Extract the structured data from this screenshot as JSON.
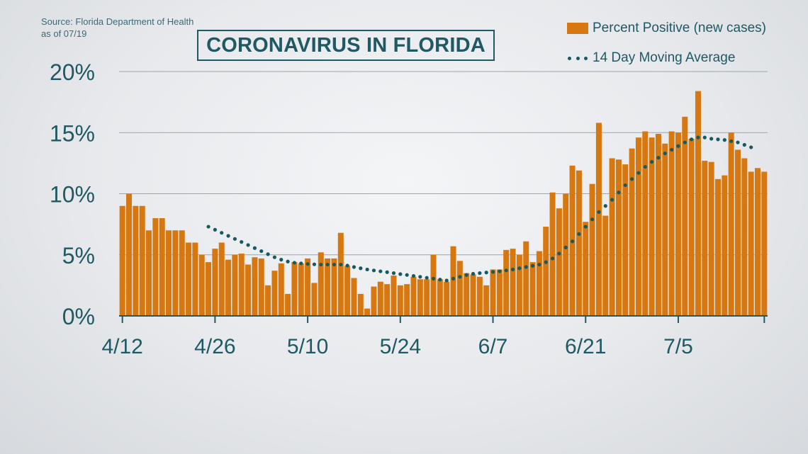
{
  "source": {
    "line1": "Source: Florida Department of Health",
    "line2": "as of 07/19"
  },
  "title": "CORONAVIRUS IN FLORIDA",
  "colors": {
    "bar": "#d6780f",
    "average_dots": "#155a5e",
    "text": "#1f5963",
    "axis": "#1f5963",
    "grid": "#9aa7ad"
  },
  "chart_data": {
    "type": "bar",
    "y_ticks": [
      "0%",
      "5%",
      "10%",
      "15%",
      "20%"
    ],
    "x_ticks": [
      "4/12",
      "4/26",
      "5/10",
      "5/24",
      "6/7",
      "6/21",
      "7/5"
    ],
    "ylim": [
      0,
      20
    ],
    "grid": true,
    "legend_position": "top-right",
    "series": [
      {
        "name": "Percent Positive (new cases)",
        "kind": "bar",
        "values": [
          9.0,
          10.0,
          9.0,
          9.0,
          7.0,
          8.0,
          8.0,
          7.0,
          7.0,
          7.0,
          6.0,
          6.0,
          5.0,
          4.4,
          5.5,
          6.0,
          4.6,
          5.0,
          5.1,
          4.2,
          4.8,
          4.7,
          2.5,
          3.7,
          4.3,
          1.8,
          4.4,
          4.3,
          4.7,
          2.7,
          5.2,
          4.7,
          4.7,
          6.8,
          4.1,
          3.1,
          1.8,
          0.6,
          2.4,
          2.8,
          2.6,
          3.3,
          2.5,
          2.6,
          3.2,
          3.0,
          3.0,
          5.0,
          3.0,
          2.8,
          5.7,
          4.5,
          3.5,
          3.4,
          3.2,
          2.5,
          3.8,
          3.8,
          5.4,
          5.5,
          5.0,
          6.1,
          4.4,
          5.3,
          7.3,
          10.1,
          8.8,
          10.0,
          12.3,
          11.9,
          7.7,
          10.8,
          15.8,
          8.2,
          12.9,
          12.8,
          12.4,
          13.7,
          14.6,
          15.1,
          14.6,
          14.9,
          14.1,
          15.1,
          15.0,
          16.3,
          14.5,
          18.4,
          12.7,
          12.6,
          11.2,
          11.5,
          15.0,
          13.6,
          12.9,
          11.8,
          12.1,
          11.8
        ]
      },
      {
        "name": "14 Day Moving Average",
        "kind": "dotted-line",
        "values": [
          null,
          null,
          null,
          null,
          null,
          null,
          null,
          null,
          null,
          null,
          null,
          null,
          null,
          7.3,
          7.05,
          6.8,
          6.55,
          6.3,
          6.05,
          5.8,
          5.55,
          5.3,
          5.05,
          4.8,
          4.6,
          4.45,
          4.35,
          4.3,
          4.25,
          4.22,
          4.2,
          4.2,
          4.2,
          4.2,
          4.12,
          4.0,
          3.9,
          3.8,
          3.72,
          3.65,
          3.58,
          3.5,
          3.42,
          3.35,
          3.27,
          3.2,
          3.12,
          3.05,
          2.97,
          2.9,
          3.05,
          3.2,
          3.35,
          3.45,
          3.5,
          3.55,
          3.6,
          3.65,
          3.72,
          3.8,
          3.9,
          4.0,
          4.1,
          4.2,
          4.4,
          4.7,
          5.1,
          5.6,
          6.1,
          6.7,
          7.3,
          7.9,
          8.5,
          9.0,
          9.5,
          10.1,
          10.7,
          11.2,
          11.7,
          12.2,
          12.6,
          12.95,
          13.3,
          13.6,
          13.9,
          14.2,
          14.45,
          14.6,
          14.6,
          14.5,
          14.45,
          14.4,
          14.3,
          14.2,
          14.0,
          13.8,
          null,
          null
        ]
      }
    ]
  }
}
